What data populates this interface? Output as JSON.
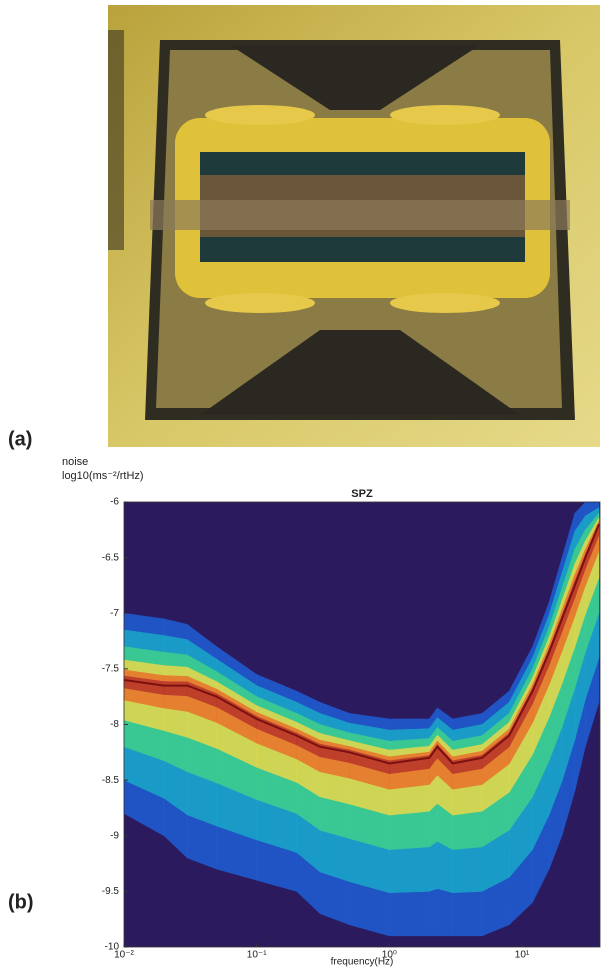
{
  "panel_a": {
    "label": "(a)"
  },
  "chart_data": {
    "type": "band",
    "panel_label": "(b)",
    "title": "SPZ",
    "y_label_line1": "noise",
    "y_label_line2": "log10(ms⁻²/rtHz)",
    "x_label": "frequency(Hz)",
    "log_x": true,
    "xlim": [
      0.01,
      38.7
    ],
    "ylim": [
      -10,
      -6
    ],
    "xticks": [
      {
        "value": 0.01,
        "label": "10⁻²"
      },
      {
        "value": 0.1,
        "label": "10⁻¹"
      },
      {
        "value": 1,
        "label": "10⁰"
      },
      {
        "value": 10,
        "label": "10¹"
      }
    ],
    "yticks": [
      -10,
      -9.5,
      -9,
      -8.5,
      -8,
      -7.5,
      -7,
      -6.5,
      -6
    ],
    "background": "#2b1a5e",
    "x": [
      0.01,
      0.02,
      0.03,
      0.05,
      0.1,
      0.2,
      0.3,
      0.5,
      1,
      2,
      2.3,
      3,
      5,
      8,
      12,
      16,
      20,
      25,
      30,
      38
    ],
    "values": [
      -7.6,
      -7.65,
      -7.65,
      -7.75,
      -7.95,
      -8.1,
      -8.2,
      -8.25,
      -8.35,
      -8.3,
      -8.2,
      -8.35,
      -8.3,
      -8.1,
      -7.7,
      -7.35,
      -7.05,
      -6.75,
      -6.5,
      -6.2
    ],
    "upper": [
      -7.0,
      -7.05,
      -7.1,
      -7.3,
      -7.55,
      -7.7,
      -7.8,
      -7.9,
      -7.95,
      -7.95,
      -7.85,
      -7.95,
      -7.9,
      -7.7,
      -7.3,
      -6.9,
      -6.5,
      -6.1,
      -6.0,
      -6.0
    ],
    "lower": [
      -8.8,
      -9.0,
      -9.2,
      -9.3,
      -9.4,
      -9.5,
      -9.7,
      -9.8,
      -9.9,
      -9.9,
      -9.9,
      -9.9,
      -9.9,
      -9.8,
      -9.6,
      -9.3,
      -9.0,
      -8.6,
      -8.2,
      -7.8
    ]
  }
}
